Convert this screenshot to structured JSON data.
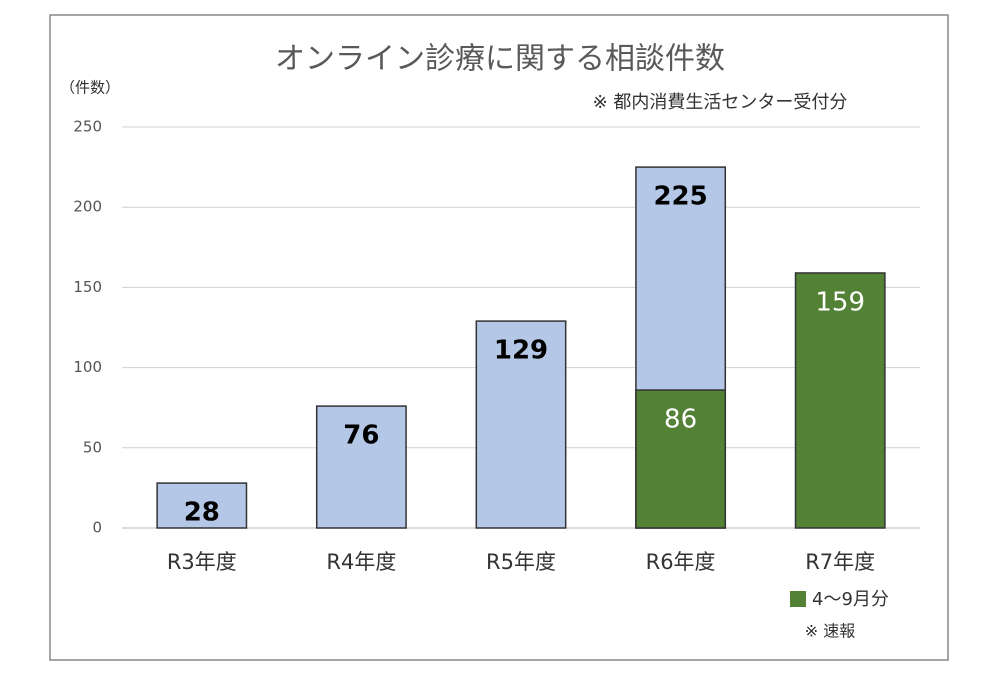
{
  "chart_data": {
    "type": "bar",
    "title": "オンライン診療に関する相談件数",
    "y_label": "（件数）",
    "note": "※ 都内消費生活センター受付分",
    "annotation": "※ 速報",
    "categories": [
      "R3年度",
      "R4年度",
      "R5年度",
      "R6年度",
      "R7年度"
    ],
    "series": [
      {
        "color": "#b4c7e7",
        "values": [
          28,
          76,
          129,
          225,
          null
        ]
      },
      {
        "name": "4〜9月分",
        "color": "#538135",
        "values": [
          null,
          null,
          null,
          86,
          159
        ]
      }
    ],
    "ylim": [
      0,
      250
    ],
    "yticks": [
      0,
      50,
      100,
      150,
      200,
      250
    ],
    "grid": true,
    "legend": "bottom-right"
  }
}
